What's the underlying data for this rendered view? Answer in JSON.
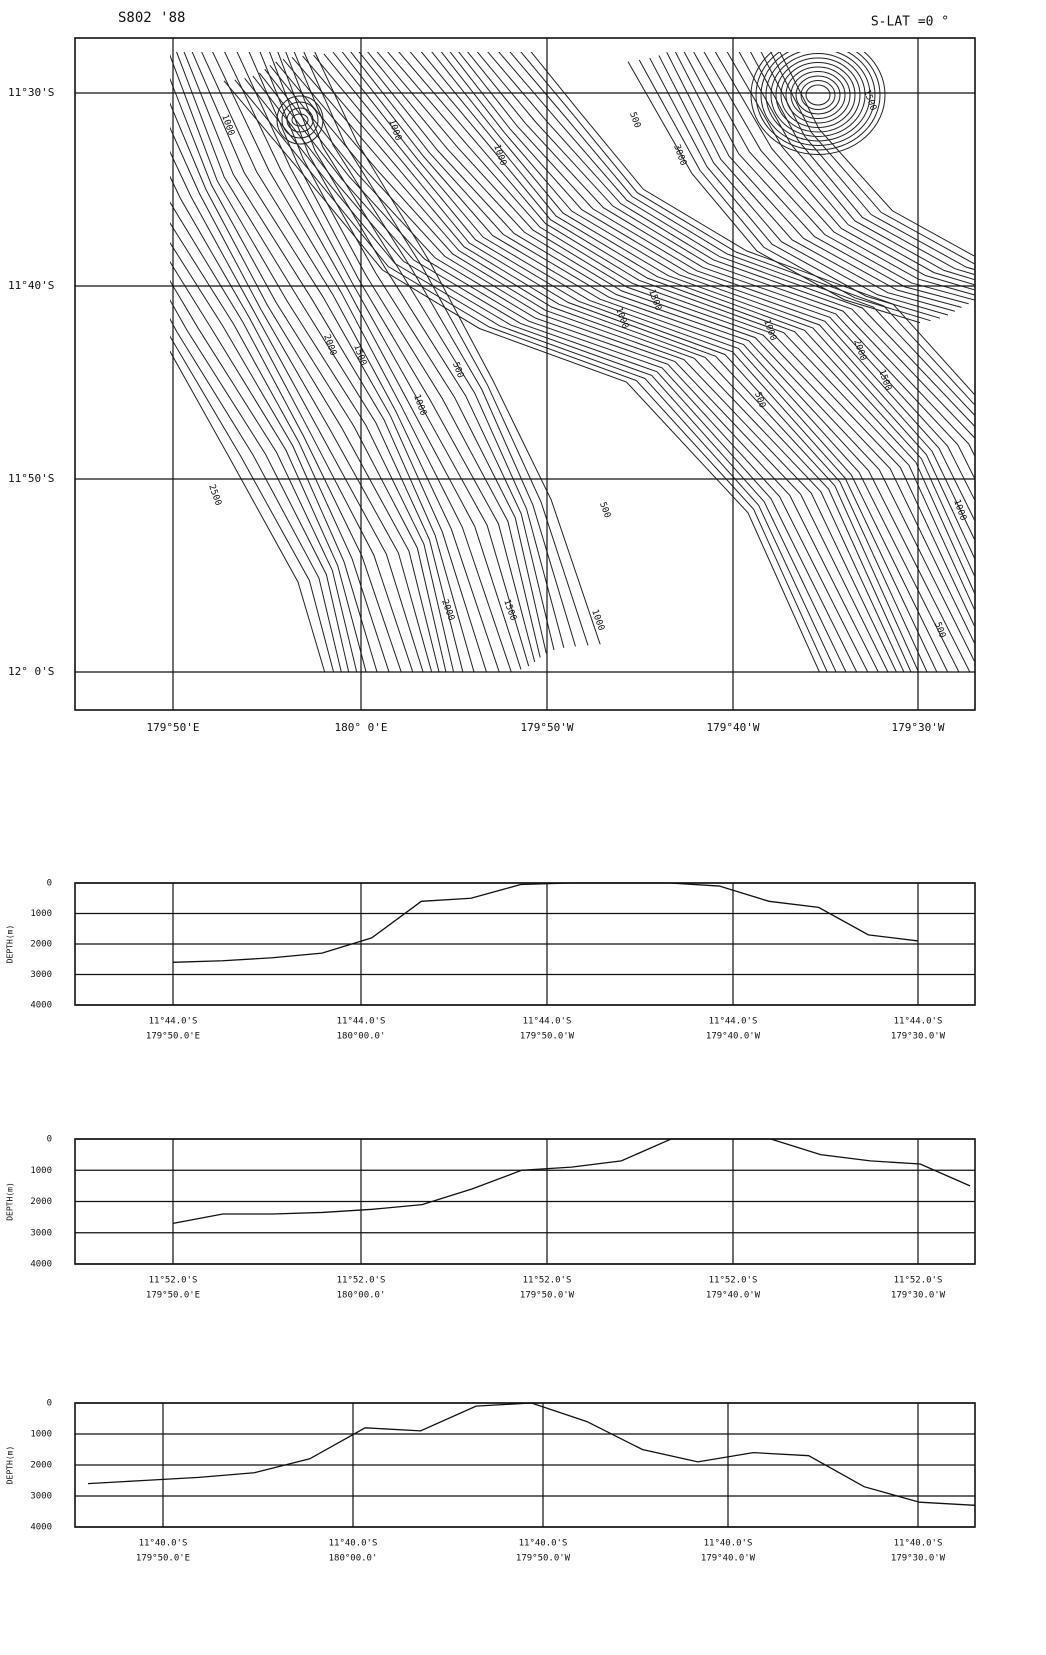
{
  "header": {
    "title": "S802 '88",
    "setting": "S-LAT =0 °"
  },
  "map": {
    "lat_labels": [
      "11°30'S",
      "11°40'S",
      "11°50'S",
      "12° 0'S"
    ],
    "lon_labels": [
      "179°50'E",
      "180° 0'E",
      "179°50'W",
      "179°40'W",
      "179°30'W"
    ],
    "contour_labels": [
      "1000",
      "1000",
      "500",
      "3000",
      "1000",
      "1500",
      "2000",
      "1500",
      "500",
      "1000",
      "1000",
      "1500",
      "1000",
      "500",
      "2500",
      "500",
      "2000",
      "1500",
      "1000",
      "1000",
      "500",
      "1500",
      "2000"
    ]
  },
  "chart_data": [
    {
      "type": "line",
      "ylabel": "DEPTH(m)",
      "ylim": [
        0,
        4000
      ],
      "yticks": [
        0,
        1000,
        2000,
        3000,
        4000
      ],
      "invert_y": true,
      "xtick_labels": [
        [
          "11°44.0'S",
          "179°50.0'E"
        ],
        [
          "11°44.0'S",
          "180°00.0'"
        ],
        [
          "11°44.0'S",
          "179°50.0'W"
        ],
        [
          "11°44.0'S",
          "179°40.0'W"
        ],
        [
          "11°44.0'S",
          "179°30.0'W"
        ]
      ],
      "series": [
        {
          "color": "#111",
          "values": [
            2600,
            2550,
            2450,
            2300,
            1800,
            600,
            500,
            50,
            0,
            0,
            0,
            100,
            600,
            800,
            1700,
            1900
          ]
        }
      ]
    },
    {
      "type": "line",
      "ylabel": "DEPTH(m)",
      "ylim": [
        0,
        4000
      ],
      "yticks": [
        0,
        1000,
        2000,
        3000,
        4000
      ],
      "invert_y": true,
      "xtick_labels": [
        [
          "11°52.0'S",
          "179°50.0'E"
        ],
        [
          "11°52.0'S",
          "180°00.0'"
        ],
        [
          "11°52.0'S",
          "179°50.0'W"
        ],
        [
          "11°52.0'S",
          "179°40.0'W"
        ],
        [
          "11°52.0'S",
          "179°30.0'W"
        ]
      ],
      "series": [
        {
          "color": "#111",
          "values": [
            2700,
            2400,
            2400,
            2350,
            2250,
            2100,
            1600,
            1000,
            900,
            700,
            0,
            0,
            0,
            500,
            700,
            800,
            1500
          ]
        }
      ]
    },
    {
      "type": "line",
      "ylabel": "DEPTH(m)",
      "ylim": [
        0,
        4000
      ],
      "yticks": [
        0,
        1000,
        2000,
        3000,
        4000
      ],
      "invert_y": true,
      "xtick_labels": [
        [
          "11°40.0'S",
          "179°50.0'E"
        ],
        [
          "11°40.0'S",
          "180°00.0'"
        ],
        [
          "11°40.0'S",
          "179°50.0'W"
        ],
        [
          "11°40.0'S",
          "179°40.0'W"
        ],
        [
          "11°40.0'S",
          "179°30.0'W"
        ]
      ],
      "series": [
        {
          "color": "#111",
          "values": [
            2600,
            2500,
            2400,
            2250,
            1800,
            800,
            900,
            100,
            0,
            600,
            1500,
            1900,
            1600,
            1700,
            2700,
            3200,
            3300
          ]
        }
      ]
    }
  ]
}
